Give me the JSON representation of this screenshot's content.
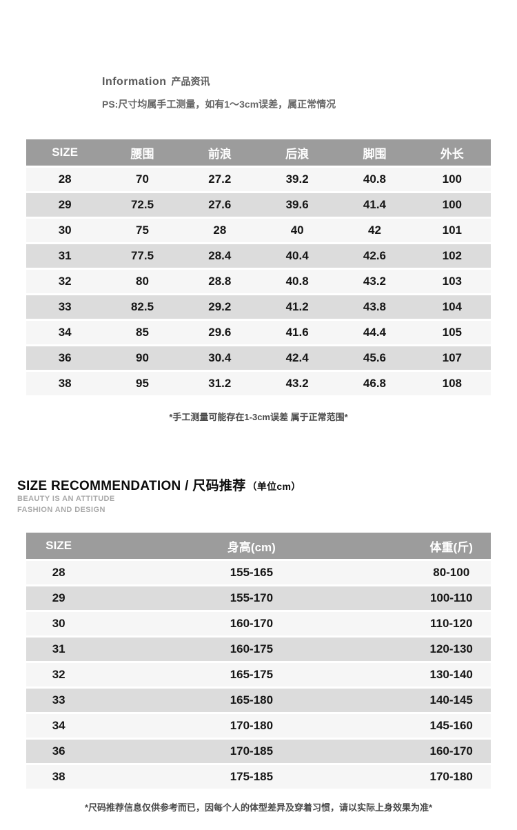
{
  "colors": {
    "header_bg": "#9c9c9c",
    "row_light": "#f6f6f6",
    "row_dark": "#dcdcdc",
    "header_text": "#ffffff"
  },
  "info": {
    "title_en": "Information",
    "title_zh": "产品资讯",
    "ps_note": "PS:尺寸均属手工测量，如有1～3cm误差，属正常情况"
  },
  "measurement_table": {
    "headers": [
      "SIZE",
      "腰围",
      "前浪",
      "后浪",
      "脚围",
      "外长"
    ],
    "rows": [
      [
        "28",
        "70",
        "27.2",
        "39.2",
        "40.8",
        "100"
      ],
      [
        "29",
        "72.5",
        "27.6",
        "39.6",
        "41.4",
        "100"
      ],
      [
        "30",
        "75",
        "28",
        "40",
        "42",
        "101"
      ],
      [
        "31",
        "77.5",
        "28.4",
        "40.4",
        "42.6",
        "102"
      ],
      [
        "32",
        "80",
        "28.8",
        "40.8",
        "43.2",
        "103"
      ],
      [
        "33",
        "82.5",
        "29.2",
        "41.2",
        "43.8",
        "104"
      ],
      [
        "34",
        "85",
        "29.6",
        "41.6",
        "44.4",
        "105"
      ],
      [
        "36",
        "90",
        "30.4",
        "42.4",
        "45.6",
        "107"
      ],
      [
        "38",
        "95",
        "31.2",
        "43.2",
        "46.8",
        "108"
      ]
    ],
    "footnote": "*手工测量可能存在1-3cm误差 属于正常范围*"
  },
  "recommendation": {
    "title": "SIZE RECOMMENDATION / 尺码推荐",
    "unit": "（单位cm）",
    "subtitle_line1": "BEAUTY IS AN ATTITUDE",
    "subtitle_line2": "FASHION AND DESIGN",
    "table": {
      "headers": [
        "SIZE",
        "身高(cm)",
        "体重(斤)"
      ],
      "rows": [
        [
          "28",
          "155-165",
          "80-100"
        ],
        [
          "29",
          "155-170",
          "100-110"
        ],
        [
          "30",
          "160-170",
          "110-120"
        ],
        [
          "31",
          "160-175",
          "120-130"
        ],
        [
          "32",
          "165-175",
          "130-140"
        ],
        [
          "33",
          "165-180",
          "140-145"
        ],
        [
          "34",
          "170-180",
          "145-160"
        ],
        [
          "36",
          "170-185",
          "160-170"
        ],
        [
          "38",
          "175-185",
          "170-180"
        ]
      ],
      "footnote": "*尺码推荐信息仅供参考而已，因每个人的体型差异及穿着习惯，请以实际上身效果为准*"
    }
  }
}
